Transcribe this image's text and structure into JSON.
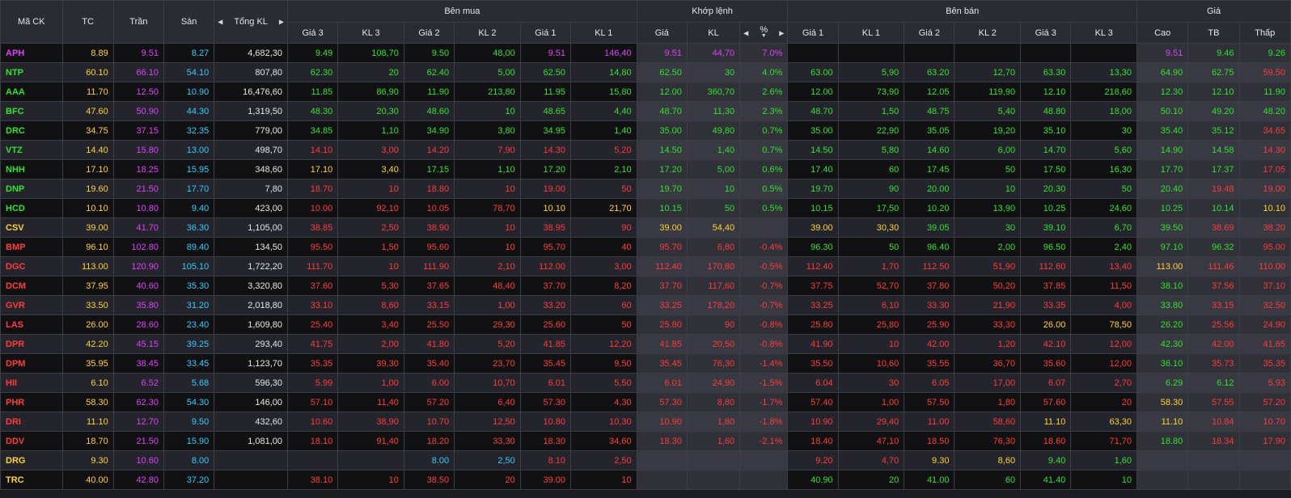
{
  "colors": {
    "ceiling": "#e040fb",
    "reference": "#ffd233",
    "floor": "#33ccff",
    "up": "#33e12f",
    "down": "#ff3b3b",
    "text": "#e6e6e6"
  },
  "icons": {
    "col_prev": "caret-left-icon",
    "col_next": "caret-right-icon",
    "sort": "sort-down-icon"
  },
  "header": {
    "symbol": "Mã CK",
    "ref": "TC",
    "ceiling": "Trần",
    "floor": "Sàn",
    "total_vol": "Tổng KL",
    "bid_group": "Bên mua",
    "match_group": "Khớp lệnh",
    "ask_group": "Bên bán",
    "price_group": "Giá",
    "bid_p3": "Giá 3",
    "bid_v3": "KL 3",
    "bid_p2": "Giá 2",
    "bid_v2": "KL 2",
    "bid_p1": "Giá 1",
    "bid_v1": "KL 1",
    "match_price": "Giá",
    "match_vol": "KL",
    "match_pct": "%",
    "ask_p1": "Giá 1",
    "ask_v1": "KL 1",
    "ask_p2": "Giá 2",
    "ask_v2": "KL 2",
    "ask_p3": "Giá 3",
    "ask_v3": "KL 3",
    "high": "Cao",
    "avg": "TB",
    "low": "Thấp"
  },
  "rows": [
    {
      "sym": "APH",
      "ref": "8.89",
      "ceil": "9.51",
      "floor": "8.27",
      "tot": "4,682,30",
      "b3": "9.49",
      "bv3": "108,70",
      "b2": "9.50",
      "bv2": "48,00",
      "b1": "9.51",
      "bv1": "146,40",
      "mp": "9.51",
      "mv": "44,70",
      "pct": "7.0%",
      "a1": "",
      "av1": "",
      "a2": "",
      "av2": "",
      "a3": "",
      "av3": "",
      "hi": "9.51",
      "avg": "9.46",
      "lo": "9.26"
    },
    {
      "sym": "NTP",
      "ref": "60.10",
      "ceil": "66.10",
      "floor": "54.10",
      "tot": "807,80",
      "b3": "62.30",
      "bv3": "20",
      "b2": "62.40",
      "bv2": "5,00",
      "b1": "62.50",
      "bv1": "14,80",
      "mp": "62.50",
      "mv": "30",
      "pct": "4.0%",
      "a1": "63.00",
      "av1": "5,90",
      "a2": "63.20",
      "av2": "12,70",
      "a3": "63.30",
      "av3": "13,30",
      "hi": "64.90",
      "avg": "62.75",
      "lo": "59.50"
    },
    {
      "sym": "AAA",
      "ref": "11.70",
      "ceil": "12.50",
      "floor": "10.90",
      "tot": "16,476,60",
      "b3": "11.85",
      "bv3": "86,90",
      "b2": "11.90",
      "bv2": "213,80",
      "b1": "11.95",
      "bv1": "15,80",
      "mp": "12.00",
      "mv": "360,70",
      "pct": "2.6%",
      "a1": "12.00",
      "av1": "73,90",
      "a2": "12.05",
      "av2": "119,90",
      "a3": "12.10",
      "av3": "218,60",
      "hi": "12.30",
      "avg": "12.10",
      "lo": "11.90"
    },
    {
      "sym": "BFC",
      "ref": "47.60",
      "ceil": "50.90",
      "floor": "44.30",
      "tot": "1,319,50",
      "b3": "48.30",
      "bv3": "20,30",
      "b2": "48.60",
      "bv2": "10",
      "b1": "48.65",
      "bv1": "4,40",
      "mp": "48.70",
      "mv": "11,30",
      "pct": "2.3%",
      "a1": "48.70",
      "av1": "1,50",
      "a2": "48.75",
      "av2": "5,40",
      "a3": "48.80",
      "av3": "18,00",
      "hi": "50.10",
      "avg": "49.20",
      "lo": "48.20"
    },
    {
      "sym": "DRC",
      "ref": "34.75",
      "ceil": "37.15",
      "floor": "32.35",
      "tot": "779,00",
      "b3": "34.85",
      "bv3": "1,10",
      "b2": "34.90",
      "bv2": "3,80",
      "b1": "34.95",
      "bv1": "1,40",
      "mp": "35.00",
      "mv": "49,80",
      "pct": "0.7%",
      "a1": "35.00",
      "av1": "22,90",
      "a2": "35.05",
      "av2": "19,20",
      "a3": "35.10",
      "av3": "30",
      "hi": "35.40",
      "avg": "35.12",
      "lo": "34.65"
    },
    {
      "sym": "VTZ",
      "ref": "14.40",
      "ceil": "15.80",
      "floor": "13.00",
      "tot": "498,70",
      "b3": "14.10",
      "bv3": "3,00",
      "b2": "14.20",
      "bv2": "7,90",
      "b1": "14.30",
      "bv1": "5,20",
      "mp": "14.50",
      "mv": "1,40",
      "pct": "0.7%",
      "a1": "14.50",
      "av1": "5,80",
      "a2": "14.60",
      "av2": "6,00",
      "a3": "14.70",
      "av3": "5,60",
      "hi": "14.90",
      "avg": "14.58",
      "lo": "14.30"
    },
    {
      "sym": "NHH",
      "ref": "17.10",
      "ceil": "18.25",
      "floor": "15.95",
      "tot": "348,60",
      "b3": "17.10",
      "bv3": "3,40",
      "b2": "17.15",
      "bv2": "1,10",
      "b1": "17.20",
      "bv1": "2,10",
      "mp": "17.20",
      "mv": "5,00",
      "pct": "0.6%",
      "a1": "17.40",
      "av1": "60",
      "a2": "17.45",
      "av2": "50",
      "a3": "17.50",
      "av3": "16,30",
      "hi": "17.70",
      "avg": "17.37",
      "lo": "17.05"
    },
    {
      "sym": "DNP",
      "ref": "19.60",
      "ceil": "21.50",
      "floor": "17.70",
      "tot": "7,80",
      "b3": "18.70",
      "bv3": "10",
      "b2": "18.80",
      "bv2": "10",
      "b1": "19.00",
      "bv1": "50",
      "mp": "19.70",
      "mv": "10",
      "pct": "0.5%",
      "a1": "19.70",
      "av1": "90",
      "a2": "20.00",
      "av2": "10",
      "a3": "20.30",
      "av3": "50",
      "hi": "20.40",
      "avg": "19.48",
      "lo": "19.00"
    },
    {
      "sym": "HCD",
      "ref": "10.10",
      "ceil": "10.80",
      "floor": "9.40",
      "tot": "423,00",
      "b3": "10.00",
      "bv3": "92,10",
      "b2": "10.05",
      "bv2": "78,70",
      "b1": "10.10",
      "bv1": "21,70",
      "mp": "10.15",
      "mv": "50",
      "pct": "0.5%",
      "a1": "10.15",
      "av1": "17,50",
      "a2": "10.20",
      "av2": "13,90",
      "a3": "10.25",
      "av3": "24,60",
      "hi": "10.25",
      "avg": "10.14",
      "lo": "10.10"
    },
    {
      "sym": "CSV",
      "ref": "39.00",
      "ceil": "41.70",
      "floor": "36.30",
      "tot": "1,105,00",
      "b3": "38.85",
      "bv3": "2,50",
      "b2": "38.90",
      "bv2": "10",
      "b1": "38.95",
      "bv1": "90",
      "mp": "39.00",
      "mv": "54,40",
      "pct": "",
      "a1": "39.00",
      "av1": "30,30",
      "a2": "39.05",
      "av2": "30",
      "a3": "39.10",
      "av3": "6,70",
      "hi": "39.50",
      "avg": "38.69",
      "lo": "38.20"
    },
    {
      "sym": "BMP",
      "ref": "96.10",
      "ceil": "102.80",
      "floor": "89.40",
      "tot": "134,50",
      "b3": "95.50",
      "bv3": "1,50",
      "b2": "95.60",
      "bv2": "10",
      "b1": "95.70",
      "bv1": "40",
      "mp": "95.70",
      "mv": "6,80",
      "pct": "-0.4%",
      "a1": "96.30",
      "av1": "50",
      "a2": "96.40",
      "av2": "2,00",
      "a3": "96.50",
      "av3": "2,40",
      "hi": "97.10",
      "avg": "96.32",
      "lo": "95.00"
    },
    {
      "sym": "DGC",
      "ref": "113.00",
      "ceil": "120.90",
      "floor": "105.10",
      "tot": "1,722,20",
      "b3": "111.70",
      "bv3": "10",
      "b2": "111.90",
      "bv2": "2,10",
      "b1": "112.00",
      "bv1": "3,00",
      "mp": "112.40",
      "mv": "170,80",
      "pct": "-0.5%",
      "a1": "112.40",
      "av1": "1,70",
      "a2": "112.50",
      "av2": "51,90",
      "a3": "112.60",
      "av3": "13,40",
      "hi": "113.00",
      "avg": "111.46",
      "lo": "110.00"
    },
    {
      "sym": "DCM",
      "ref": "37.95",
      "ceil": "40.60",
      "floor": "35.30",
      "tot": "3,320,80",
      "b3": "37.60",
      "bv3": "5,30",
      "b2": "37.65",
      "bv2": "48,40",
      "b1": "37.70",
      "bv1": "8,20",
      "mp": "37.70",
      "mv": "117,60",
      "pct": "-0.7%",
      "a1": "37.75",
      "av1": "52,70",
      "a2": "37.80",
      "av2": "50,20",
      "a3": "37.85",
      "av3": "11,50",
      "hi": "38.10",
      "avg": "37.56",
      "lo": "37.10"
    },
    {
      "sym": "GVR",
      "ref": "33.50",
      "ceil": "35.80",
      "floor": "31.20",
      "tot": "2,018,80",
      "b3": "33.10",
      "bv3": "8,60",
      "b2": "33.15",
      "bv2": "1,00",
      "b1": "33.20",
      "bv1": "60",
      "mp": "33.25",
      "mv": "178,20",
      "pct": "-0.7%",
      "a1": "33.25",
      "av1": "6,10",
      "a2": "33.30",
      "av2": "21,90",
      "a3": "33.35",
      "av3": "4,00",
      "hi": "33.80",
      "avg": "33.15",
      "lo": "32.50"
    },
    {
      "sym": "LAS",
      "ref": "26.00",
      "ceil": "28.60",
      "floor": "23.40",
      "tot": "1,609,80",
      "b3": "25.40",
      "bv3": "3,40",
      "b2": "25.50",
      "bv2": "29,30",
      "b1": "25.60",
      "bv1": "50",
      "mp": "25.80",
      "mv": "90",
      "pct": "-0.8%",
      "a1": "25.80",
      "av1": "25,80",
      "a2": "25.90",
      "av2": "33,30",
      "a3": "26.00",
      "av3": "78,50",
      "hi": "26.20",
      "avg": "25.56",
      "lo": "24.90"
    },
    {
      "sym": "DPR",
      "ref": "42.20",
      "ceil": "45.15",
      "floor": "39.25",
      "tot": "293,40",
      "b3": "41.75",
      "bv3": "2,00",
      "b2": "41.80",
      "bv2": "5,20",
      "b1": "41.85",
      "bv1": "12,20",
      "mp": "41.85",
      "mv": "20,50",
      "pct": "-0.8%",
      "a1": "41.90",
      "av1": "10",
      "a2": "42.00",
      "av2": "1,20",
      "a3": "42.10",
      "av3": "12,00",
      "hi": "42.30",
      "avg": "42.00",
      "lo": "41.65"
    },
    {
      "sym": "DPM",
      "ref": "35.95",
      "ceil": "38.45",
      "floor": "33.45",
      "tot": "1,123,70",
      "b3": "35.35",
      "bv3": "39,30",
      "b2": "35.40",
      "bv2": "23,70",
      "b1": "35.45",
      "bv1": "9,50",
      "mp": "35.45",
      "mv": "76,30",
      "pct": "-1.4%",
      "a1": "35.50",
      "av1": "10,60",
      "a2": "35.55",
      "av2": "36,70",
      "a3": "35.60",
      "av3": "12,00",
      "hi": "36.10",
      "avg": "35.73",
      "lo": "35.35"
    },
    {
      "sym": "HII",
      "ref": "6.10",
      "ceil": "6.52",
      "floor": "5.68",
      "tot": "596,30",
      "b3": "5.99",
      "bv3": "1,00",
      "b2": "6.00",
      "bv2": "10,70",
      "b1": "6.01",
      "bv1": "5,50",
      "mp": "6.01",
      "mv": "24,90",
      "pct": "-1.5%",
      "a1": "6.04",
      "av1": "30",
      "a2": "6.05",
      "av2": "17,00",
      "a3": "6.07",
      "av3": "2,70",
      "hi": "6.29",
      "avg": "6.12",
      "lo": "5.93"
    },
    {
      "sym": "PHR",
      "ref": "58.30",
      "ceil": "62.30",
      "floor": "54.30",
      "tot": "146,00",
      "b3": "57.10",
      "bv3": "11,40",
      "b2": "57.20",
      "bv2": "6,40",
      "b1": "57.30",
      "bv1": "4,30",
      "mp": "57.30",
      "mv": "8,80",
      "pct": "-1.7%",
      "a1": "57.40",
      "av1": "1,00",
      "a2": "57.50",
      "av2": "1,80",
      "a3": "57.60",
      "av3": "20",
      "hi": "58.30",
      "avg": "57.55",
      "lo": "57.20"
    },
    {
      "sym": "DRI",
      "ref": "11.10",
      "ceil": "12.70",
      "floor": "9.50",
      "tot": "432,60",
      "b3": "10.60",
      "bv3": "38,90",
      "b2": "10.70",
      "bv2": "12,50",
      "b1": "10.80",
      "bv1": "10,30",
      "mp": "10.90",
      "mv": "1,80",
      "pct": "-1.8%",
      "a1": "10.90",
      "av1": "29,40",
      "a2": "11.00",
      "av2": "58,60",
      "a3": "11.10",
      "av3": "63,30",
      "hi": "11.10",
      "avg": "10.84",
      "lo": "10.70"
    },
    {
      "sym": "DDV",
      "ref": "18.70",
      "ceil": "21.50",
      "floor": "15.90",
      "tot": "1,081,00",
      "b3": "18.10",
      "bv3": "91,40",
      "b2": "18.20",
      "bv2": "33,30",
      "b1": "18.30",
      "bv1": "34,60",
      "mp": "18.30",
      "mv": "1,60",
      "pct": "-2.1%",
      "a1": "18.40",
      "av1": "47,10",
      "a2": "18.50",
      "av2": "76,30",
      "a3": "18.60",
      "av3": "71,70",
      "hi": "18.80",
      "avg": "18.34",
      "lo": "17.90"
    },
    {
      "sym": "DRG",
      "ref": "9.30",
      "ceil": "10.60",
      "floor": "8.00",
      "tot": "",
      "b3": "",
      "bv3": "",
      "b2": "8.00",
      "bv2": "2,50",
      "b1": "8.10",
      "bv1": "2,50",
      "mp": "",
      "mv": "",
      "pct": "",
      "a1": "9.20",
      "av1": "4,70",
      "a2": "9.30",
      "av2": "8,60",
      "a3": "9.40",
      "av3": "1,60",
      "hi": "",
      "avg": "",
      "lo": ""
    },
    {
      "sym": "TRC",
      "ref": "40.00",
      "ceil": "42.80",
      "floor": "37.20",
      "tot": "",
      "b3": "38.10",
      "bv3": "10",
      "b2": "38.50",
      "bv2": "20",
      "b1": "39.00",
      "bv1": "10",
      "mp": "",
      "mv": "",
      "pct": "",
      "a1": "40.90",
      "av1": "20",
      "a2": "41.00",
      "av2": "60",
      "a3": "41.40",
      "av3": "10",
      "hi": "",
      "avg": "",
      "lo": ""
    }
  ]
}
